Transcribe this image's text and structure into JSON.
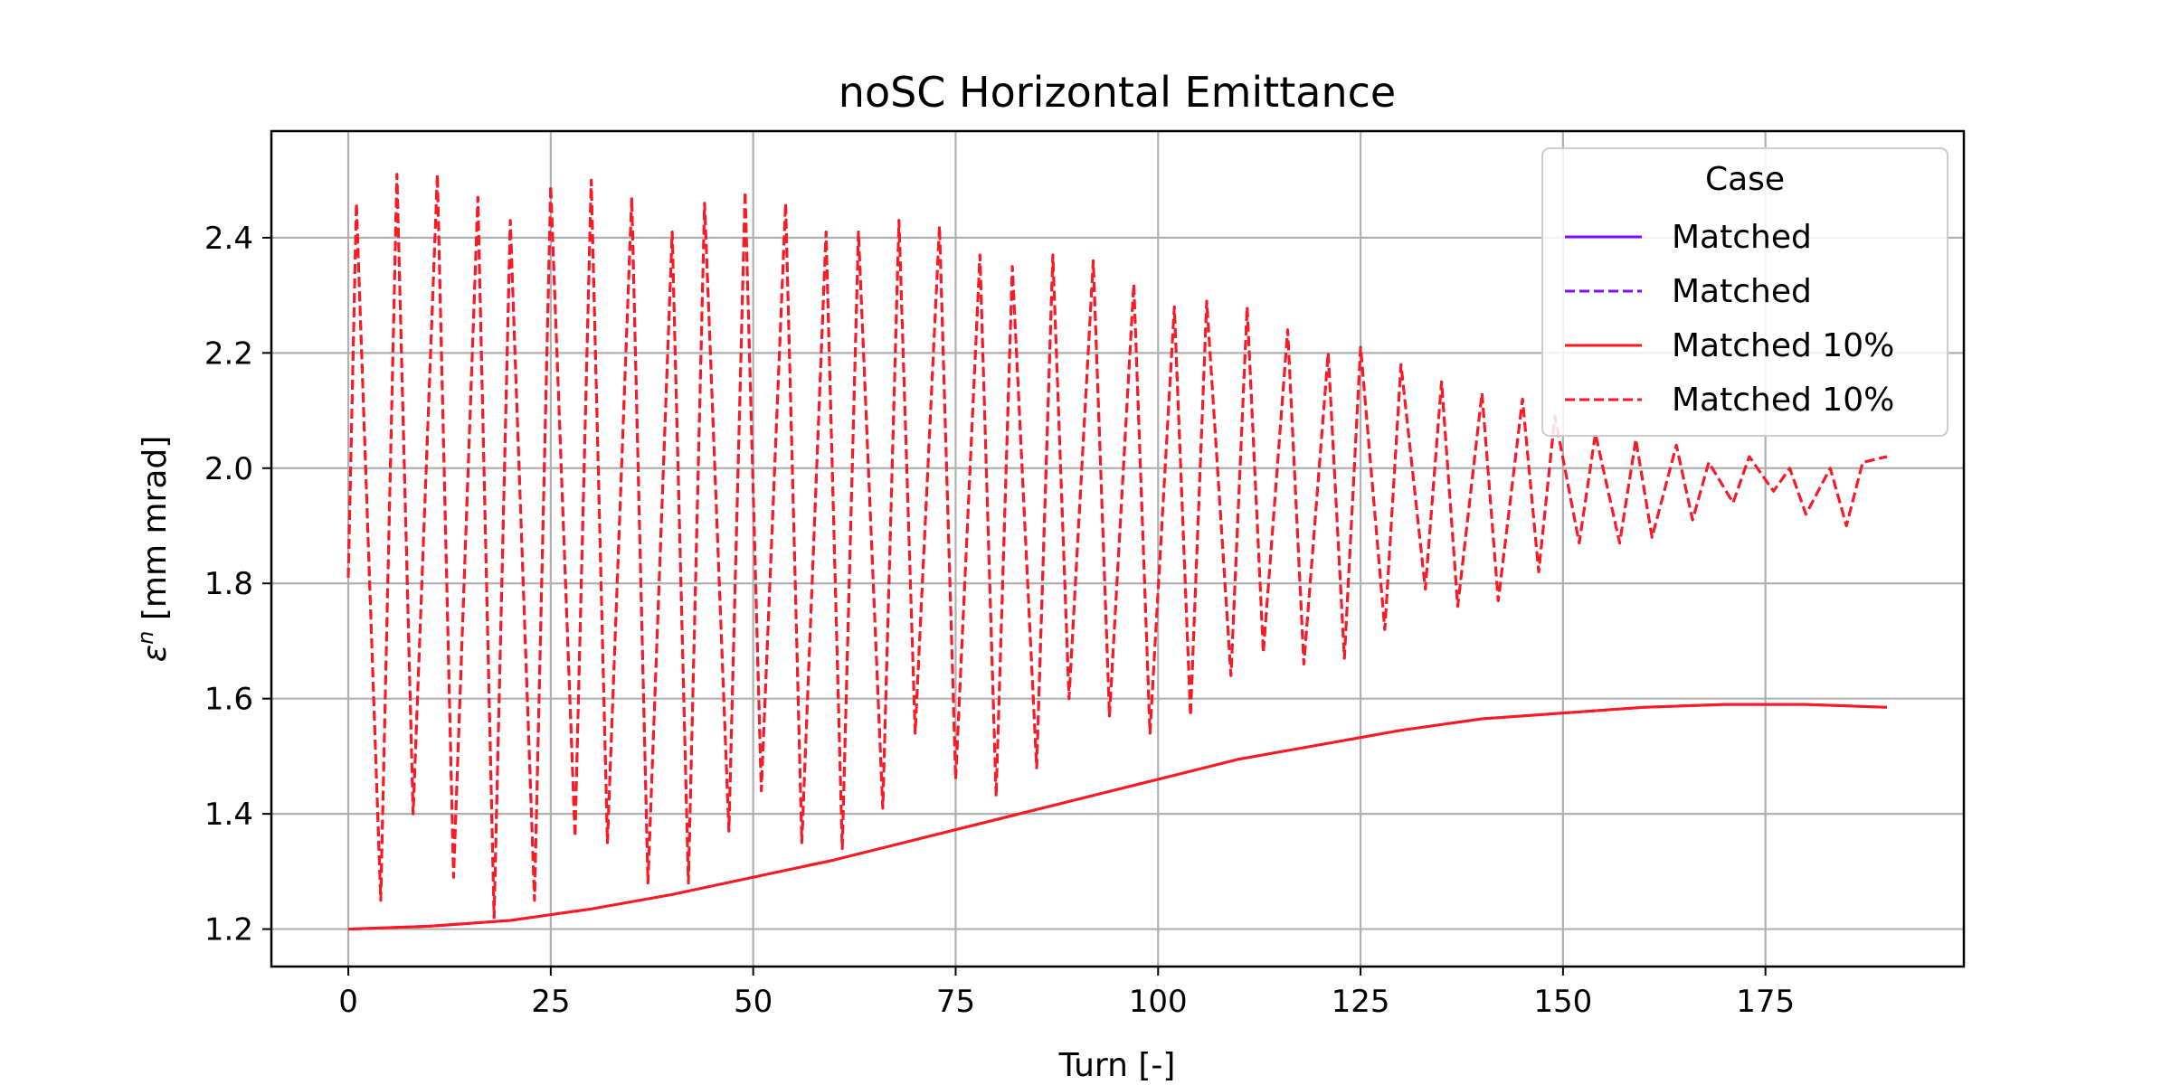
{
  "chart_data": {
    "type": "line",
    "title": "noSC Horizontal Emittance",
    "xlabel": "Turn [-]",
    "ylabel_symbol": "ε",
    "ylabel_sup": "n",
    "ylabel_unit": " [mm mrad]",
    "xlim": [
      -9.5,
      199.5
    ],
    "ylim": [
      1.135,
      2.585
    ],
    "xticks": [
      0,
      25,
      50,
      75,
      100,
      125,
      150,
      175
    ],
    "yticks": [
      1.2,
      1.4,
      1.6,
      1.8,
      2.0,
      2.2,
      2.4
    ],
    "ytick_labels": [
      "1.2",
      "1.4",
      "1.6",
      "1.8",
      "2.0",
      "2.2",
      "2.4"
    ],
    "grid": true,
    "legend": {
      "title": "Case",
      "placement": "top-right",
      "entries": [
        {
          "label": "Matched",
          "color": "#7b10ff",
          "dash": "solid"
        },
        {
          "label": "Matched",
          "color": "#7b10ff",
          "dash": "dashed"
        },
        {
          "label": "Matched 10%",
          "color": "#ff1a1a",
          "dash": "solid"
        },
        {
          "label": "Matched 10%",
          "color": "#ff1a1a",
          "dash": "dashed"
        }
      ]
    },
    "series": [
      {
        "key": "matched_solid",
        "color": "#7b10ff",
        "dash": "solid",
        "x": [
          0,
          10,
          20,
          30,
          40,
          50,
          60,
          70,
          80,
          90,
          100,
          110,
          120,
          130,
          140,
          150,
          160,
          170,
          180,
          190
        ],
        "y": [
          1.2,
          1.205,
          1.215,
          1.235,
          1.26,
          1.29,
          1.32,
          1.355,
          1.39,
          1.425,
          1.46,
          1.495,
          1.52,
          1.545,
          1.565,
          1.575,
          1.585,
          1.59,
          1.59,
          1.585
        ]
      },
      {
        "key": "matched_dashed",
        "color": "#7b10ff",
        "dash": "dashed",
        "x": [
          0,
          1,
          4,
          6,
          8,
          11,
          13,
          16,
          18,
          20,
          23,
          25,
          28,
          30,
          32,
          35,
          37,
          40,
          42,
          44,
          47,
          49,
          51,
          54,
          56,
          59,
          61,
          63,
          66,
          68,
          70,
          73,
          75,
          78,
          80,
          82,
          85,
          87,
          89,
          92,
          94,
          97,
          99,
          102,
          104,
          106,
          109,
          111,
          113,
          116,
          118,
          121,
          123,
          125,
          128,
          130,
          133,
          135,
          137,
          140,
          142,
          145,
          147,
          149,
          152,
          154,
          157,
          159,
          161,
          164,
          166,
          168,
          171,
          173,
          176,
          178,
          180,
          183,
          185,
          187,
          190
        ],
        "y": [
          1.81,
          2.46,
          1.25,
          2.51,
          1.4,
          2.51,
          1.29,
          2.47,
          1.22,
          2.43,
          1.25,
          2.49,
          1.36,
          2.5,
          1.35,
          2.47,
          1.28,
          2.41,
          1.28,
          2.46,
          1.37,
          2.48,
          1.44,
          2.46,
          1.35,
          2.41,
          1.34,
          2.41,
          1.41,
          2.43,
          1.54,
          2.42,
          1.46,
          2.37,
          1.43,
          2.35,
          1.48,
          2.37,
          1.6,
          2.36,
          1.57,
          2.32,
          1.54,
          2.28,
          1.57,
          2.29,
          1.64,
          2.28,
          1.68,
          2.24,
          1.66,
          2.2,
          1.67,
          2.21,
          1.72,
          2.18,
          1.79,
          2.15,
          1.76,
          2.13,
          1.77,
          2.12,
          1.82,
          2.09,
          1.87,
          2.06,
          1.87,
          2.05,
          1.88,
          2.04,
          1.91,
          2.01,
          1.94,
          2.02,
          1.96,
          2.0,
          1.92,
          2.0,
          1.9,
          2.01,
          2.02
        ]
      },
      {
        "key": "matched10_solid",
        "color": "#ff1a1a",
        "dash": "solid",
        "x": [
          0,
          10,
          20,
          30,
          40,
          50,
          60,
          70,
          80,
          90,
          100,
          110,
          120,
          130,
          140,
          150,
          160,
          170,
          180,
          190
        ],
        "y": [
          1.2,
          1.205,
          1.215,
          1.235,
          1.26,
          1.29,
          1.32,
          1.355,
          1.39,
          1.425,
          1.46,
          1.495,
          1.52,
          1.545,
          1.565,
          1.575,
          1.585,
          1.59,
          1.59,
          1.585
        ]
      },
      {
        "key": "matched10_dashed",
        "color": "#ff1a1a",
        "dash": "dashed",
        "x": [
          0,
          1,
          4,
          6,
          8,
          11,
          13,
          16,
          18,
          20,
          23,
          25,
          28,
          30,
          32,
          35,
          37,
          40,
          42,
          44,
          47,
          49,
          51,
          54,
          56,
          59,
          61,
          63,
          66,
          68,
          70,
          73,
          75,
          78,
          80,
          82,
          85,
          87,
          89,
          92,
          94,
          97,
          99,
          102,
          104,
          106,
          109,
          111,
          113,
          116,
          118,
          121,
          123,
          125,
          128,
          130,
          133,
          135,
          137,
          140,
          142,
          145,
          147,
          149,
          152,
          154,
          157,
          159,
          161,
          164,
          166,
          168,
          171,
          173,
          176,
          178,
          180,
          183,
          185,
          187,
          190
        ],
        "y": [
          1.81,
          2.46,
          1.25,
          2.51,
          1.4,
          2.51,
          1.29,
          2.47,
          1.22,
          2.43,
          1.25,
          2.49,
          1.36,
          2.5,
          1.35,
          2.47,
          1.28,
          2.41,
          1.28,
          2.46,
          1.37,
          2.48,
          1.44,
          2.46,
          1.35,
          2.41,
          1.34,
          2.41,
          1.41,
          2.43,
          1.54,
          2.42,
          1.46,
          2.37,
          1.43,
          2.35,
          1.48,
          2.37,
          1.6,
          2.36,
          1.57,
          2.32,
          1.54,
          2.28,
          1.57,
          2.29,
          1.64,
          2.28,
          1.68,
          2.24,
          1.66,
          2.2,
          1.67,
          2.21,
          1.72,
          2.18,
          1.79,
          2.15,
          1.76,
          2.13,
          1.77,
          2.12,
          1.82,
          2.09,
          1.87,
          2.06,
          1.87,
          2.05,
          1.88,
          2.04,
          1.91,
          2.01,
          1.94,
          2.02,
          1.96,
          2.0,
          1.92,
          2.0,
          1.9,
          2.01,
          2.02
        ]
      }
    ]
  }
}
